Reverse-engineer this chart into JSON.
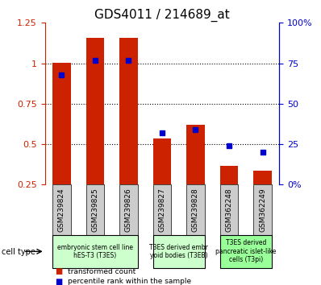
{
  "title": "GDS4011 / 214689_at",
  "samples": [
    "GSM239824",
    "GSM239825",
    "GSM239826",
    "GSM239827",
    "GSM239828",
    "GSM362248",
    "GSM362249"
  ],
  "transformed_count": [
    1.005,
    1.155,
    1.155,
    0.535,
    0.62,
    0.365,
    0.335
  ],
  "percentile_rank_right": [
    68,
    77,
    77,
    32,
    34,
    24,
    20
  ],
  "bar_bottom": 0.25,
  "ylim_left": [
    0.25,
    1.25
  ],
  "ylim_right": [
    0,
    100
  ],
  "yticks_left": [
    0.25,
    0.5,
    0.75,
    1.0,
    1.25
  ],
  "yticks_right": [
    0,
    25,
    50,
    75,
    100
  ],
  "ytick_labels_left": [
    "0.25",
    "0.5",
    "0.75",
    "1",
    "1.25"
  ],
  "ytick_labels_right": [
    "0%",
    "25",
    "50",
    "75",
    "100%"
  ],
  "dotted_lines": [
    0.5,
    0.75,
    1.0
  ],
  "bar_color": "#cc2200",
  "dot_color": "#0000cc",
  "bar_width": 0.55,
  "groups": [
    {
      "label": "embryonic stem cell line\nhES-T3 (T3ES)",
      "start": 0,
      "end": 2,
      "color": "#ccffcc"
    },
    {
      "label": "T3ES derived embr\nyoid bodies (T3EB)",
      "start": 3,
      "end": 4,
      "color": "#ccffcc"
    },
    {
      "label": "T3ES derived\npancreatic islet-like\ncells (T3pi)",
      "start": 5,
      "end": 6,
      "color": "#99ff99"
    }
  ],
  "legend_items": [
    {
      "label": "transformed count",
      "color": "#cc2200"
    },
    {
      "label": "percentile rank within the sample",
      "color": "#0000cc"
    }
  ],
  "cell_type_label": "cell type",
  "left_axis_color": "#cc2200",
  "right_axis_color": "#0000cc",
  "background_color": "#ffffff",
  "plot_bg_color": "#ffffff",
  "xticklabel_bg": "#cccccc"
}
